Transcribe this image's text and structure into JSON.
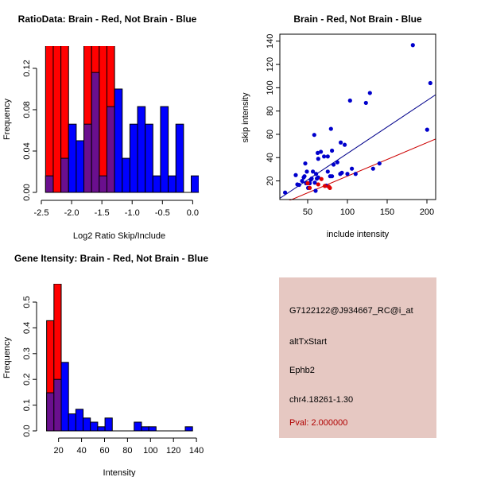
{
  "colors": {
    "red": "#ff0000",
    "blue": "#0000ff",
    "overlap": "#6a0f8e",
    "info_bg": "#e6c8c2",
    "pval": "#b00000",
    "blue_line": "#00008b",
    "red_line": "#cc0000"
  },
  "chart_data": [
    {
      "type": "bar",
      "title": "RatioData: Brain - Red, Not Brain - Blue",
      "xlabel": "Log2 Ratio Skip/Include",
      "ylabel": "Frequency",
      "bin_start": -2.43,
      "bin_width": 0.1266,
      "xlim": [
        -2.5,
        0.1
      ],
      "ylim": [
        0,
        0.1415
      ],
      "xticks": [
        -2.5,
        -2.0,
        -1.5,
        -1.0,
        -0.5,
        0.0
      ],
      "xtick_labels": [
        "-2.5",
        "-2.0",
        "-1.5",
        "-1.0",
        "-0.5",
        "0.0"
      ],
      "yticks": [
        0,
        0.04,
        0.08,
        0.12
      ],
      "ytick_labels": [
        "0.00",
        "0.04",
        "0.08",
        "0.12"
      ],
      "series": [
        {
          "name": "Brain",
          "color": "red",
          "values": [
            0.143,
            0.143,
            0.143,
            0,
            0,
            0.143,
            0.143,
            0.143,
            0.143,
            0,
            0,
            0,
            0,
            0,
            0,
            0,
            0,
            0,
            0,
            0
          ]
        },
        {
          "name": "Not Brain",
          "color": "blue",
          "values": [
            0.016,
            0,
            0.033,
            0.066,
            0.05,
            0.066,
            0.116,
            0.016,
            0.083,
            0.1,
            0.033,
            0.066,
            0.083,
            0.066,
            0.016,
            0.083,
            0.016,
            0.066,
            0,
            0.016
          ]
        }
      ]
    },
    {
      "type": "scatter",
      "title": "Brain - Red, Not Brain - Blue",
      "xlabel": "include intensity",
      "ylabel": "skip intensity",
      "xlim": [
        15,
        211
      ],
      "ylim": [
        4,
        146
      ],
      "xticks": [
        50,
        100,
        150,
        200
      ],
      "xtick_labels": [
        "50",
        "100",
        "150",
        "200"
      ],
      "yticks": [
        20,
        40,
        60,
        80,
        100,
        120,
        140
      ],
      "ytick_labels": [
        "20",
        "40",
        "60",
        "80",
        "100",
        "120",
        "140"
      ],
      "series": [
        {
          "name": "Not Brain",
          "color": "blue",
          "points": [
            [
              21.6,
              10
            ],
            [
              35,
              25
            ],
            [
              37,
              17
            ],
            [
              39.3,
              16.6
            ],
            [
              43,
              20
            ],
            [
              45,
              23
            ],
            [
              46,
              24
            ],
            [
              47,
              35
            ],
            [
              48,
              18
            ],
            [
              49,
              28
            ],
            [
              50.6,
              14
            ],
            [
              52.6,
              18
            ],
            [
              54,
              21
            ],
            [
              55,
              22
            ],
            [
              56.6,
              28
            ],
            [
              58.3,
              59.5
            ],
            [
              59,
              18.5
            ],
            [
              60,
              11.5
            ],
            [
              60.6,
              26
            ],
            [
              61.6,
              22
            ],
            [
              62.6,
              44
            ],
            [
              63.3,
              39
            ],
            [
              63.3,
              23
            ],
            [
              66.6,
              45
            ],
            [
              70.6,
              41
            ],
            [
              73.3,
              16
            ],
            [
              75.3,
              41
            ],
            [
              75.3,
              28
            ],
            [
              78.3,
              24
            ],
            [
              79.3,
              64.7
            ],
            [
              80.6,
              24
            ],
            [
              80.6,
              46
            ],
            [
              82.6,
              34
            ],
            [
              87.3,
              36
            ],
            [
              91,
              26
            ],
            [
              91.6,
              53
            ],
            [
              93,
              27
            ],
            [
              96.6,
              51
            ],
            [
              100,
              26
            ],
            [
              103.3,
              89
            ],
            [
              105.6,
              30.5
            ],
            [
              110.3,
              26
            ],
            [
              123.3,
              87
            ],
            [
              128.3,
              95.5
            ],
            [
              132.3,
              30.5
            ],
            [
              140.3,
              35
            ],
            [
              182.3,
              136.6
            ],
            [
              200.3,
              64
            ],
            [
              204.3,
              104
            ]
          ],
          "fit": {
            "slope": 0.454,
            "intercept": -1.8
          }
        },
        {
          "name": "Brain",
          "color": "red",
          "points": [
            [
              50,
              18
            ],
            [
              52.6,
              14
            ],
            [
              63.3,
              17
            ],
            [
              67.3,
              21.6
            ],
            [
              71.6,
              15.7
            ],
            [
              76.6,
              15
            ],
            [
              78,
              14
            ]
          ],
          "fit": {
            "slope": 0.287,
            "intercept": -4.6
          }
        }
      ]
    },
    {
      "type": "bar",
      "title": "Gene Itensity: Brain - Red, Not Brain - Blue",
      "xlabel": "Intensity",
      "ylabel": "Frequency",
      "bin_start": 9.6,
      "bin_width": 6.35,
      "xlim": [
        5,
        142
      ],
      "ylim": [
        0,
        0.571
      ],
      "xticks": [
        20,
        40,
        60,
        80,
        100,
        120,
        140
      ],
      "xtick_labels": [
        "20",
        "40",
        "60",
        "80",
        "100",
        "120",
        "140"
      ],
      "yticks": [
        0,
        0.1,
        0.2,
        0.3,
        0.4,
        0.5
      ],
      "ytick_labels": [
        "0.0",
        "0.1",
        "0.2",
        "0.3",
        "0.4",
        "0.5"
      ],
      "series": [
        {
          "name": "Brain",
          "color": "red",
          "values": [
            0.428,
            0.571,
            0,
            0,
            0,
            0,
            0,
            0,
            0,
            0,
            0,
            0,
            0,
            0,
            0,
            0,
            0,
            0,
            0,
            0
          ]
        },
        {
          "name": "Not Brain",
          "color": "blue",
          "values": [
            0.148,
            0.2,
            0.266,
            0.066,
            0.084,
            0.05,
            0.034,
            0.016,
            0.05,
            0,
            0,
            0,
            0.034,
            0.016,
            0.016,
            0,
            0,
            0,
            0,
            0.016
          ]
        }
      ]
    }
  ],
  "info": {
    "probe_id": "G7122122@J934667_RC@i_at",
    "event_type": "altTxStart",
    "gene": "Ephb2",
    "location": "chr4.18261-1.30",
    "pval": "Pval: 2.000000"
  }
}
